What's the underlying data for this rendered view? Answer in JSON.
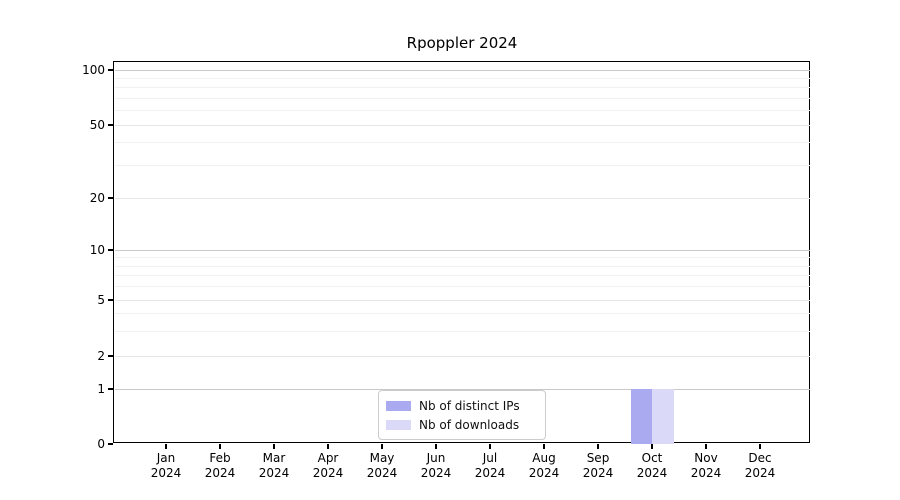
{
  "title": "Rpoppler 2024",
  "chart_data": {
    "type": "bar",
    "title": "Rpoppler 2024",
    "categories": [
      "Jan",
      "Feb",
      "Mar",
      "Apr",
      "May",
      "Jun",
      "Jul",
      "Aug",
      "Sep",
      "Oct",
      "Nov",
      "Dec"
    ],
    "category_year": "2024",
    "series": [
      {
        "name": "Nb of distinct IPs",
        "color": "#aaaaf0",
        "values": [
          0,
          0,
          0,
          0,
          0,
          0,
          0,
          0,
          0,
          1,
          0,
          0
        ]
      },
      {
        "name": "Nb of downloads",
        "color": "#dadaf8",
        "values": [
          0,
          0,
          0,
          0,
          0,
          0,
          0,
          0,
          0,
          1,
          0,
          0
        ]
      }
    ],
    "y_axis": {
      "scale": "log-like (0 then log ticks)",
      "ticks": [
        0,
        1,
        2,
        5,
        10,
        20,
        50,
        100
      ],
      "minor_ticks": [
        3,
        4,
        6,
        7,
        8,
        9,
        30,
        40,
        60,
        70,
        80,
        90
      ],
      "ylim": [
        0,
        115
      ]
    },
    "x_axis": {
      "tick_label_line1": [
        "Jan",
        "Feb",
        "Mar",
        "Apr",
        "May",
        "Jun",
        "Jul",
        "Aug",
        "Sep",
        "Oct",
        "Nov",
        "Dec"
      ],
      "tick_label_line2": "2024"
    },
    "legend": {
      "position": "bottom-center",
      "entries": [
        "Nb of distinct IPs",
        "Nb of downloads"
      ]
    },
    "grid": true,
    "colors": {
      "major_power_gridline": "#c9c9c9",
      "major_gridline": "#e6e6e6",
      "minor_gridline": "#f1f1f1",
      "spine": "#000000",
      "background": "#ffffff"
    },
    "xlabel": "",
    "ylabel": ""
  }
}
